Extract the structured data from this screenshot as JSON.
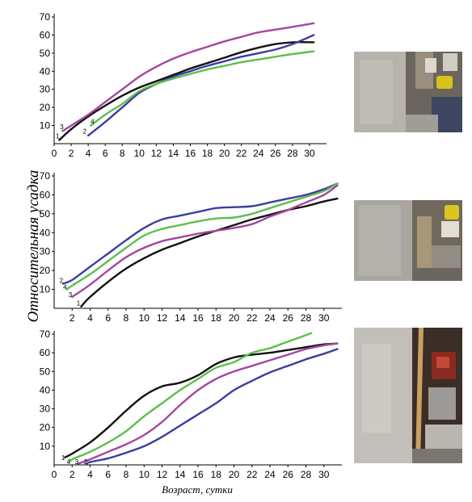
{
  "figure": {
    "ylabel": "Относительная усадка",
    "xlabel": "Возраст, сутки",
    "colors": {
      "1": "#111111",
      "2": "#3b3da0",
      "3": "#a3479e",
      "4": "#5cbf4b"
    }
  },
  "chart_data": [
    {
      "type": "line",
      "title": "",
      "xlabel": "",
      "ylabel": "",
      "xlim": [
        0,
        32
      ],
      "ylim": [
        0,
        70
      ],
      "xticks": [
        0,
        2,
        4,
        6,
        8,
        10,
        12,
        14,
        16,
        18,
        20,
        22,
        24,
        26,
        28,
        30
      ],
      "yticks": [
        10,
        20,
        30,
        40,
        50,
        60,
        70
      ],
      "grid": false,
      "series": [
        {
          "name": "1",
          "color": "#111111",
          "x": [
            0.6,
            2,
            4,
            6,
            8,
            10,
            12,
            14,
            16,
            18,
            20,
            22,
            24,
            26,
            28,
            30.5
          ],
          "y": [
            2,
            8,
            15,
            21,
            26.5,
            31,
            34.5,
            38,
            41.5,
            44.5,
            47.5,
            50.5,
            53,
            55,
            56,
            56
          ]
        },
        {
          "name": "2",
          "color": "#3b3da0",
          "x": [
            4,
            6,
            8,
            10,
            12,
            14,
            16,
            18,
            20,
            22,
            24,
            26,
            28,
            30.5
          ],
          "y": [
            4.5,
            12,
            20,
            28,
            33,
            37,
            40,
            43,
            45.5,
            48,
            50,
            52,
            55,
            60
          ]
        },
        {
          "name": "3",
          "color": "#a3479e",
          "x": [
            1,
            2,
            4,
            6,
            8,
            10,
            12,
            14,
            16,
            18,
            20,
            22,
            24,
            26,
            28,
            30.5
          ],
          "y": [
            7,
            10,
            16,
            23,
            30,
            37,
            42.5,
            47,
            50.5,
            53.5,
            56.5,
            59,
            61.5,
            63,
            64.5,
            66.5
          ]
        },
        {
          "name": "4",
          "color": "#5cbf4b",
          "x": [
            4.3,
            6,
            8,
            10,
            12,
            14,
            16,
            18,
            20,
            22,
            24,
            26,
            28,
            30.5
          ],
          "y": [
            10,
            16,
            22,
            29,
            33,
            36,
            38.5,
            41,
            43,
            45,
            46.5,
            48,
            49.5,
            51
          ]
        }
      ],
      "curve_labels": [
        {
          "text": "1",
          "x": 0.4,
          "y": 3
        },
        {
          "text": "2",
          "x": 3.6,
          "y": 5.5
        },
        {
          "text": "3",
          "x": 0.9,
          "y": 8
        },
        {
          "text": "4",
          "x": 4.5,
          "y": 11
        }
      ]
    },
    {
      "type": "line",
      "title": "",
      "xlabel": "",
      "ylabel": "",
      "xlim": [
        0,
        32
      ],
      "ylim": [
        0,
        70
      ],
      "xticks": [
        2,
        4,
        6,
        8,
        10,
        12,
        14,
        16,
        18,
        20,
        22,
        24,
        26,
        28,
        30
      ],
      "yticks": [
        10,
        20,
        30,
        40,
        50,
        60,
        70
      ],
      "grid": false,
      "series": [
        {
          "name": "1",
          "color": "#111111",
          "x": [
            3,
            4,
            6,
            8,
            10,
            12,
            14,
            16,
            18,
            20,
            22,
            24,
            26,
            28,
            30,
            31.5
          ],
          "y": [
            1,
            6,
            14,
            21,
            26.5,
            31,
            34.5,
            38,
            41,
            44,
            47,
            49.5,
            52,
            54,
            56.5,
            58
          ]
        },
        {
          "name": "2",
          "color": "#3b3da0",
          "x": [
            1,
            2,
            4,
            6,
            8,
            10,
            12,
            14,
            16,
            18,
            20,
            22,
            24,
            26,
            28,
            30,
            31.5
          ],
          "y": [
            13,
            15,
            22,
            29,
            36,
            42.5,
            47,
            49,
            51,
            53,
            53.5,
            54,
            56,
            58,
            60,
            63,
            66
          ]
        },
        {
          "name": "3",
          "color": "#a3479e",
          "x": [
            2,
            4,
            6,
            8,
            10,
            12,
            14,
            16,
            18,
            20,
            22,
            24,
            26,
            28,
            30,
            31.5
          ],
          "y": [
            6,
            12.5,
            20,
            27,
            32,
            35.5,
            37.5,
            39.5,
            41,
            42.5,
            44.5,
            48.5,
            52,
            56,
            60,
            65
          ]
        },
        {
          "name": "4",
          "color": "#5cbf4b",
          "x": [
            1.4,
            2,
            4,
            6,
            8,
            10,
            12,
            14,
            16,
            18,
            20,
            22,
            24,
            26,
            28,
            30,
            31.5
          ],
          "y": [
            10,
            12,
            18,
            25,
            32,
            38.5,
            42,
            44,
            46,
            47.5,
            48,
            50,
            53,
            56,
            59,
            62,
            66
          ]
        }
      ],
      "curve_labels": [
        {
          "text": "1",
          "x": 2.7,
          "y": 1.5
        },
        {
          "text": "2",
          "x": 0.8,
          "y": 13.5
        },
        {
          "text": "3",
          "x": 1.8,
          "y": 6
        },
        {
          "text": "4",
          "x": 1.2,
          "y": 10
        }
      ]
    },
    {
      "type": "line",
      "title": "",
      "xlabel": "",
      "ylabel": "",
      "xlim": [
        0,
        32
      ],
      "ylim": [
        0,
        70
      ],
      "xticks": [
        0,
        2,
        4,
        6,
        8,
        10,
        12,
        14,
        16,
        18,
        20,
        22,
        24,
        26,
        28,
        30
      ],
      "yticks": [
        10,
        20,
        30,
        40,
        50,
        60,
        70
      ],
      "grid": false,
      "series": [
        {
          "name": "1",
          "color": "#111111",
          "x": [
            1.2,
            2,
            4,
            6,
            8,
            10,
            12,
            14,
            16,
            18,
            20,
            22,
            24,
            26,
            28,
            30,
            31.5
          ],
          "y": [
            4,
            6,
            12,
            20,
            29,
            37,
            42,
            44,
            48,
            54,
            57.5,
            59,
            60,
            61.5,
            63,
            64.5,
            65
          ]
        },
        {
          "name": "2",
          "color": "#3b3da0",
          "x": [
            3.6,
            4,
            6,
            8,
            10,
            12,
            14,
            16,
            18,
            20,
            22,
            24,
            26,
            28,
            30,
            31.5
          ],
          "y": [
            0.5,
            1.5,
            3.5,
            6.5,
            10,
            15,
            21,
            27,
            33,
            40,
            45,
            49.5,
            53,
            56.5,
            59.5,
            62
          ]
        },
        {
          "name": "3",
          "color": "#a3479e",
          "x": [
            2.6,
            4,
            6,
            8,
            10,
            12,
            14,
            16,
            18,
            20,
            22,
            24,
            26,
            28,
            30,
            31.5
          ],
          "y": [
            0.5,
            3,
            7,
            11,
            16,
            23,
            32,
            40,
            46,
            50,
            53,
            56,
            59,
            62,
            64,
            65
          ]
        },
        {
          "name": "4",
          "color": "#5cbf4b",
          "x": [
            1.8,
            2,
            4,
            6,
            8,
            10,
            12,
            14,
            16,
            18,
            20,
            22,
            24,
            26,
            28.6
          ],
          "y": [
            2,
            3,
            7,
            12,
            18,
            26,
            33,
            40,
            46,
            52,
            55,
            60,
            62.5,
            66,
            70.5
          ]
        }
      ],
      "curve_labels": [
        {
          "text": "1",
          "x": 1.0,
          "y": 2.5
        },
        {
          "text": "2",
          "x": 3.5,
          "y": 0.5
        },
        {
          "text": "3",
          "x": 2.5,
          "y": 0.5
        },
        {
          "text": "4",
          "x": 1.6,
          "y": 0.5
        }
      ]
    }
  ]
}
